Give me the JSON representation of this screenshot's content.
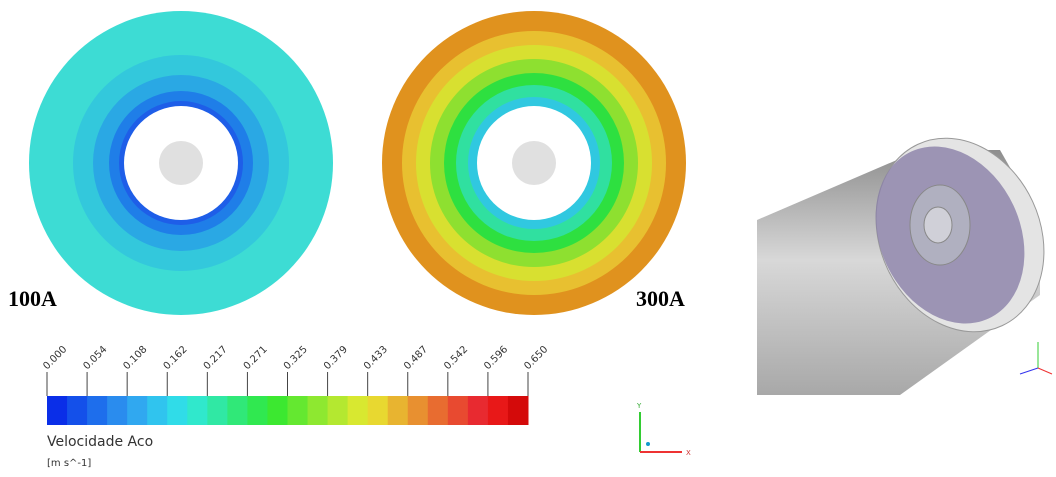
{
  "panels": [
    {
      "label": "100A"
    },
    {
      "label": "300A"
    }
  ],
  "colorbar": {
    "ticks": [
      "0.000",
      "0.054",
      "0.108",
      "0.162",
      "0.217",
      "0.271",
      "0.325",
      "0.379",
      "0.433",
      "0.487",
      "0.542",
      "0.596",
      "0.650"
    ],
    "title": "Velocidade Aco",
    "unit": "[m s^-1]"
  },
  "triad": {
    "y": "Y",
    "x": "X"
  }
}
